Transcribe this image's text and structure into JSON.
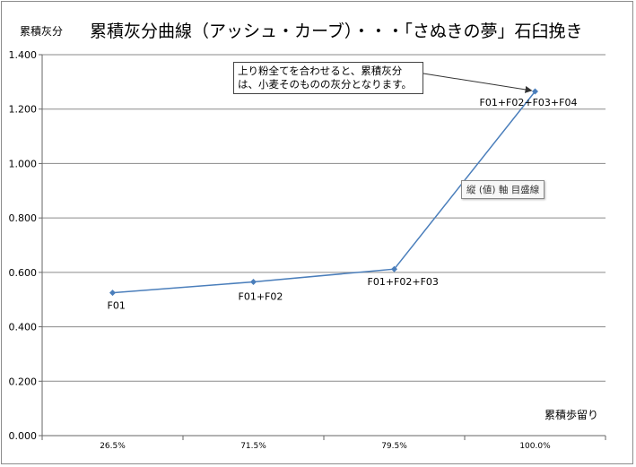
{
  "chart_data": {
    "type": "line",
    "title": "累積灰分曲線（アッシュ・カーブ）・・・「さぬきの夢」石臼挽き",
    "ylabel": "累積灰分",
    "xlabel": "累積歩留り",
    "categories": [
      "26.5%",
      "71.5%",
      "79.5%",
      "100.0%"
    ],
    "series": [
      {
        "values": [
          0.525,
          0.565,
          0.612,
          1.265
        ]
      }
    ],
    "point_labels": [
      "F01",
      "F01+F02",
      "F01+F02+F03",
      "F01+F02+F03+F04"
    ],
    "ylim": [
      0,
      1.4
    ],
    "y_ticks": [
      "0.000",
      "0.200",
      "0.400",
      "0.600",
      "0.800",
      "1.000",
      "1.200",
      "1.400"
    ],
    "grid": true,
    "annotation": "上り粉全てを合わせると、累積灰分は、小麦そのものの灰分となります。",
    "tooltip": "縦 (値) 軸 目盛線",
    "colors": {
      "series": "#4a7ebb",
      "grid": "#8a8a8a"
    }
  }
}
